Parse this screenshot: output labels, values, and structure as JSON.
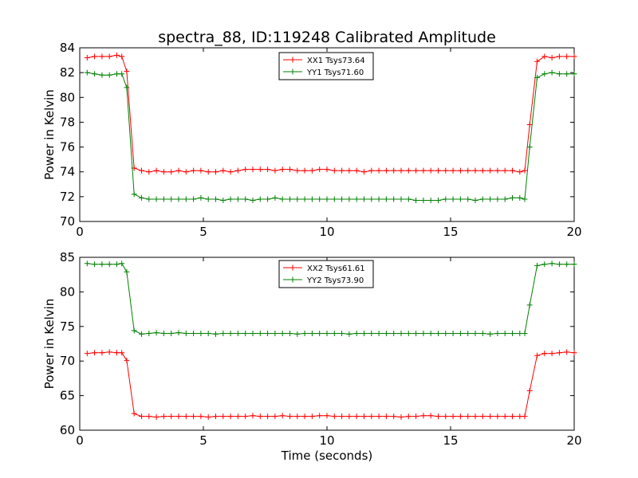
{
  "figure": {
    "title": "spectra_88, ID:119248 Calibrated Amplitude"
  },
  "chart_data": [
    {
      "type": "line",
      "title": "spectra_88, ID:119248 Calibrated Amplitude",
      "xlabel": "",
      "ylabel": "Power in Kelvin",
      "xlim": [
        0,
        20
      ],
      "ylim": [
        70,
        84
      ],
      "xticks": [
        0,
        5,
        10,
        15,
        20
      ],
      "yticks": [
        70,
        72,
        74,
        76,
        78,
        80,
        82,
        84
      ],
      "legend_position": "top-center",
      "grid": false,
      "x": [
        0.3,
        0.6,
        0.9,
        1.2,
        1.5,
        1.7,
        1.9,
        2.2,
        2.5,
        2.8,
        3.1,
        3.4,
        3.7,
        4.0,
        4.3,
        4.6,
        4.9,
        5.2,
        5.5,
        5.8,
        6.1,
        6.4,
        6.7,
        7.0,
        7.3,
        7.6,
        7.9,
        8.2,
        8.5,
        8.8,
        9.1,
        9.4,
        9.7,
        10.0,
        10.3,
        10.6,
        10.9,
        11.2,
        11.5,
        11.8,
        12.1,
        12.4,
        12.7,
        13.0,
        13.3,
        13.6,
        13.9,
        14.2,
        14.5,
        14.8,
        15.1,
        15.4,
        15.7,
        16.0,
        16.3,
        16.6,
        16.9,
        17.2,
        17.5,
        17.8,
        18.0,
        18.2,
        18.5,
        18.8,
        19.1,
        19.4,
        19.7,
        20.0
      ],
      "series": [
        {
          "name": "XX1 Tsys73.64",
          "color": "#ff0000",
          "values": [
            83.2,
            83.3,
            83.3,
            83.3,
            83.4,
            83.3,
            82.1,
            74.3,
            74.1,
            74.0,
            74.1,
            74.0,
            74.0,
            74.1,
            74.0,
            74.1,
            74.1,
            74.0,
            74.0,
            74.1,
            74.0,
            74.1,
            74.2,
            74.2,
            74.2,
            74.2,
            74.1,
            74.2,
            74.2,
            74.1,
            74.1,
            74.1,
            74.2,
            74.2,
            74.1,
            74.1,
            74.1,
            74.1,
            74.0,
            74.1,
            74.1,
            74.1,
            74.1,
            74.1,
            74.1,
            74.1,
            74.1,
            74.1,
            74.1,
            74.1,
            74.1,
            74.1,
            74.1,
            74.1,
            74.1,
            74.1,
            74.1,
            74.1,
            74.1,
            74.0,
            74.1,
            77.8,
            82.9,
            83.3,
            83.2,
            83.3,
            83.3,
            83.3
          ]
        },
        {
          "name": "YY1 Tsys71.60",
          "color": "#008000",
          "values": [
            82.0,
            81.9,
            81.8,
            81.8,
            81.9,
            81.9,
            80.8,
            72.2,
            71.9,
            71.8,
            71.8,
            71.8,
            71.8,
            71.8,
            71.8,
            71.8,
            71.9,
            71.8,
            71.8,
            71.7,
            71.8,
            71.8,
            71.8,
            71.7,
            71.8,
            71.8,
            71.9,
            71.8,
            71.8,
            71.8,
            71.8,
            71.8,
            71.8,
            71.8,
            71.8,
            71.8,
            71.8,
            71.8,
            71.8,
            71.8,
            71.8,
            71.8,
            71.8,
            71.8,
            71.8,
            71.7,
            71.7,
            71.7,
            71.7,
            71.8,
            71.8,
            71.8,
            71.8,
            71.7,
            71.8,
            71.8,
            71.8,
            71.8,
            71.9,
            71.9,
            71.8,
            76.0,
            81.6,
            81.9,
            82.0,
            81.9,
            81.9,
            81.9
          ]
        }
      ]
    },
    {
      "type": "line",
      "title": "",
      "xlabel": "Time (seconds)",
      "ylabel": "Power in Kelvin",
      "xlim": [
        0,
        20
      ],
      "ylim": [
        60,
        85
      ],
      "xticks": [
        0,
        5,
        10,
        15,
        20
      ],
      "yticks": [
        60,
        65,
        70,
        75,
        80,
        85
      ],
      "legend_position": "top-center",
      "grid": false,
      "x": [
        0.3,
        0.6,
        0.9,
        1.2,
        1.5,
        1.7,
        1.9,
        2.2,
        2.5,
        2.8,
        3.1,
        3.4,
        3.7,
        4.0,
        4.3,
        4.6,
        4.9,
        5.2,
        5.5,
        5.8,
        6.1,
        6.4,
        6.7,
        7.0,
        7.3,
        7.6,
        7.9,
        8.2,
        8.5,
        8.8,
        9.1,
        9.4,
        9.7,
        10.0,
        10.3,
        10.6,
        10.9,
        11.2,
        11.5,
        11.8,
        12.1,
        12.4,
        12.7,
        13.0,
        13.3,
        13.6,
        13.9,
        14.2,
        14.5,
        14.8,
        15.1,
        15.4,
        15.7,
        16.0,
        16.3,
        16.6,
        16.9,
        17.2,
        17.5,
        17.8,
        18.0,
        18.2,
        18.5,
        18.8,
        19.1,
        19.4,
        19.7,
        20.0
      ],
      "series": [
        {
          "name": "XX2 Tsys61.61",
          "color": "#ff0000",
          "values": [
            71.1,
            71.2,
            71.2,
            71.3,
            71.2,
            71.2,
            70.1,
            62.4,
            62.0,
            62.0,
            61.9,
            62.0,
            62.0,
            62.0,
            62.0,
            62.0,
            62.0,
            61.9,
            62.0,
            62.0,
            62.0,
            62.0,
            62.0,
            62.1,
            62.0,
            62.0,
            62.0,
            62.1,
            62.0,
            62.0,
            62.0,
            62.0,
            62.1,
            62.1,
            62.0,
            62.0,
            62.0,
            62.0,
            62.0,
            62.0,
            62.0,
            62.0,
            62.0,
            61.9,
            62.0,
            62.0,
            62.1,
            62.1,
            62.0,
            62.0,
            62.0,
            62.0,
            62.0,
            62.0,
            62.0,
            62.0,
            62.0,
            62.0,
            62.0,
            62.0,
            62.0,
            65.7,
            70.8,
            71.1,
            71.1,
            71.2,
            71.3,
            71.2
          ]
        },
        {
          "name": "YY2 Tsys73.90",
          "color": "#008000",
          "values": [
            84.1,
            84.0,
            84.0,
            84.0,
            84.0,
            84.1,
            82.9,
            74.4,
            73.9,
            74.0,
            74.1,
            74.0,
            74.0,
            74.1,
            74.0,
            74.0,
            74.0,
            74.0,
            73.9,
            74.0,
            74.0,
            74.0,
            74.0,
            74.0,
            74.0,
            74.0,
            74.0,
            74.0,
            74.0,
            73.9,
            74.0,
            74.0,
            74.0,
            74.0,
            74.0,
            74.0,
            73.9,
            74.0,
            74.0,
            74.0,
            74.0,
            74.0,
            74.0,
            74.0,
            74.0,
            74.0,
            74.0,
            74.0,
            74.0,
            74.0,
            74.0,
            74.0,
            74.0,
            74.0,
            74.0,
            73.9,
            74.0,
            74.0,
            74.0,
            74.0,
            74.0,
            78.1,
            83.8,
            84.0,
            84.1,
            84.0,
            84.0,
            84.0
          ]
        }
      ]
    }
  ]
}
